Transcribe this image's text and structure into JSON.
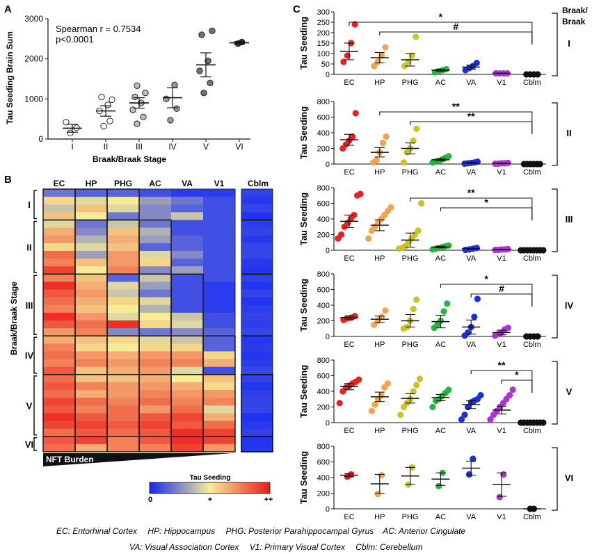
{
  "colors": {
    "EC": "#e8231f",
    "HP": "#f5a34a",
    "PHG": "#c7c42a",
    "AC": "#27b53b",
    "VA": "#1d2fd6",
    "V1": "#b12fd8",
    "Cblm": "#111111",
    "heat_low": "#1428f5",
    "heat_mid": "#f6ec98",
    "heat_high": "#ee1a1a"
  },
  "panel_a": {
    "letter": "A",
    "chart_data": {
      "type": "scatter",
      "categories": [
        "I",
        "II",
        "III",
        "IV",
        "V",
        "VI"
      ],
      "points": [
        [
          150,
          280,
          420
        ],
        [
          320,
          450,
          700,
          850,
          1050,
          980
        ],
        [
          380,
          550,
          730,
          900,
          1050,
          1150,
          1330
        ],
        [
          470,
          760,
          1000,
          1350
        ],
        [
          1150,
          1400,
          1700,
          1950,
          2600,
          2700
        ],
        [
          2380,
          2420
        ]
      ],
      "means": [
        270,
        700,
        900,
        1030,
        1850,
        2400
      ],
      "sem": [
        100,
        130,
        130,
        250,
        300,
        30
      ],
      "ylim": [
        0,
        3000
      ],
      "yticks": [
        "0",
        "1000",
        "2000",
        "3000"
      ],
      "xlabel": "Braak/Braak Stage",
      "ylabel": "Tau Seeding Brain Sum",
      "annotation": [
        "Spearman r = 0.7534",
        "p<0.0001"
      ]
    }
  },
  "panel_b": {
    "letter": "B",
    "columns": [
      "EC",
      "HP",
      "PHG",
      "AC",
      "VA",
      "V1"
    ],
    "cblm_label": "Cblm",
    "row_axis_label": "Braak/Braak Stage",
    "stage_labels": [
      "I",
      "II",
      "III",
      "IV",
      "V",
      "VI"
    ],
    "nft_label": "NFT Burden",
    "colorbar_title": "Tau Seeding",
    "colorbar_ticks": [
      "0",
      "+",
      "++"
    ],
    "chart_data": {
      "type": "heatmap",
      "scale": "0 = no seeding, 1 = maximum seeding",
      "rows_per_stage": [
        4,
        7,
        8,
        5,
        8,
        2
      ],
      "values": [
        [
          0.2,
          0.15,
          0.15,
          0.1,
          0.05,
          0.05,
          0.05
        ],
        [
          0.55,
          0.45,
          0.5,
          0.3,
          0.2,
          0.1,
          0.05
        ],
        [
          0.4,
          0.6,
          0.45,
          0.25,
          0.15,
          0.1,
          0.05
        ],
        [
          0.6,
          0.5,
          0.2,
          0.25,
          0.4,
          0.1,
          0.05
        ],
        [
          0.45,
          0.2,
          0.4,
          0.2,
          0.1,
          0.1,
          0.05
        ],
        [
          0.65,
          0.25,
          0.6,
          0.35,
          0.1,
          0.1,
          0.05
        ],
        [
          0.7,
          0.35,
          0.65,
          0.3,
          0.15,
          0.1,
          0.05
        ],
        [
          0.55,
          0.45,
          0.6,
          0.15,
          0.15,
          0.1,
          0.05
        ],
        [
          0.8,
          0.3,
          0.7,
          0.45,
          0.25,
          0.1,
          0.05
        ],
        [
          0.75,
          0.6,
          0.7,
          0.55,
          0.15,
          0.1,
          0.05
        ],
        [
          0.9,
          0.5,
          0.75,
          0.25,
          0.3,
          0.1,
          0.05
        ],
        [
          0.75,
          0.6,
          0.15,
          0.4,
          0.1,
          0.1,
          0.05
        ],
        [
          0.95,
          0.65,
          0.45,
          0.3,
          0.1,
          0.05,
          0.05
        ],
        [
          0.85,
          0.7,
          0.4,
          0.2,
          0.1,
          0.05,
          0.05
        ],
        [
          0.8,
          0.65,
          0.55,
          0.45,
          0.1,
          0.05,
          0.05
        ],
        [
          0.75,
          0.6,
          0.5,
          0.35,
          0.1,
          0.05,
          0.05
        ],
        [
          0.95,
          0.7,
          0.45,
          0.5,
          0.4,
          0.1,
          0.05
        ],
        [
          0.85,
          0.8,
          0.95,
          0.55,
          0.45,
          0.1,
          0.05
        ],
        [
          0.7,
          0.75,
          0.25,
          0.2,
          0.25,
          0.15,
          0.05
        ],
        [
          0.65,
          0.6,
          0.55,
          0.45,
          0.4,
          0.15,
          0.05
        ],
        [
          0.75,
          0.55,
          0.5,
          0.55,
          0.55,
          0.15,
          0.05
        ],
        [
          0.8,
          0.7,
          0.65,
          0.7,
          0.7,
          0.55,
          0.05
        ],
        [
          0.75,
          0.75,
          0.7,
          0.75,
          0.75,
          0.65,
          0.05
        ],
        [
          0.85,
          0.6,
          0.65,
          0.7,
          0.45,
          0.1,
          0.05
        ],
        [
          0.8,
          0.6,
          0.6,
          0.65,
          0.5,
          0.6,
          0.05
        ],
        [
          0.85,
          0.75,
          0.7,
          0.7,
          0.65,
          0.55,
          0.05
        ],
        [
          0.8,
          0.65,
          0.7,
          0.75,
          0.7,
          0.7,
          0.05
        ],
        [
          0.9,
          0.8,
          0.75,
          0.8,
          0.75,
          0.75,
          0.05
        ],
        [
          0.85,
          0.75,
          0.8,
          0.7,
          0.8,
          0.45,
          0.05
        ],
        [
          0.95,
          0.85,
          0.8,
          0.85,
          0.9,
          0.65,
          0.05
        ],
        [
          0.9,
          0.9,
          0.85,
          0.9,
          0.85,
          0.8,
          0.05
        ],
        [
          0.8,
          0.85,
          0.8,
          0.85,
          0.95,
          0.9,
          0.05
        ],
        [
          0.85,
          0.9,
          0.75,
          0.85,
          0.95,
          0.9,
          0.05
        ],
        [
          0.8,
          0.65,
          0.75,
          0.75,
          0.9,
          0.7,
          0.05
        ]
      ],
      "box_columns_per_stage": [
        [
          0,
          1,
          2
        ],
        [
          0,
          1,
          2,
          3
        ],
        [
          0,
          1,
          2,
          3,
          4
        ],
        [
          0,
          1,
          2,
          3,
          4,
          5
        ],
        [
          0,
          1,
          2,
          3,
          4,
          5,
          6
        ],
        [
          0,
          1,
          2,
          3,
          4,
          5,
          6
        ]
      ]
    }
  },
  "panel_c": {
    "letter": "C",
    "braak_header": [
      "Braak/",
      "Braak"
    ],
    "ylabel": "Tau Seeding",
    "regions": [
      "EC",
      "HP",
      "PHG",
      "AC",
      "VA",
      "V1",
      "Cblm"
    ],
    "chart_data": [
      {
        "stage": "I",
        "ylim": [
          0,
          300
        ],
        "yticks": [
          "0",
          "50",
          "100",
          "150",
          "200",
          "250",
          "300"
        ],
        "points": [
          [
            60,
            90,
            150,
            240
          ],
          [
            40,
            60,
            90,
            130
          ],
          [
            40,
            60,
            90,
            180
          ],
          [
            10,
            15,
            20,
            25
          ],
          [
            20,
            30,
            40,
            55
          ],
          [
            5,
            5,
            5,
            5
          ],
          [
            0,
            0,
            0,
            0
          ]
        ],
        "means": [
          110,
          80,
          70,
          20,
          35,
          5,
          0
        ],
        "sem": [
          40,
          25,
          30,
          5,
          10,
          1,
          0
        ],
        "brackets": [
          {
            "from": 0,
            "to": 6,
            "label": "*"
          },
          {
            "from": 1,
            "to": 6,
            "label": "#"
          }
        ]
      },
      {
        "stage": "II",
        "ylim": [
          0,
          800
        ],
        "yticks": [
          "0",
          "200",
          "400",
          "600",
          "800"
        ],
        "points": [
          [
            200,
            250,
            300,
            350,
            650
          ],
          [
            20,
            50,
            150,
            270,
            350
          ],
          [
            20,
            150,
            200,
            300,
            450
          ],
          [
            20,
            30,
            40,
            60,
            80,
            100
          ],
          [
            5,
            10,
            15,
            20,
            30
          ],
          [
            5,
            5,
            10,
            10,
            15
          ],
          [
            0,
            0,
            0,
            0,
            0,
            0
          ]
        ],
        "means": [
          310,
          150,
          200,
          55,
          15,
          8,
          0
        ],
        "sem": [
          70,
          60,
          70,
          15,
          5,
          2,
          0
        ],
        "brackets": [
          {
            "from": 1,
            "to": 6,
            "label": "**"
          },
          {
            "from": 2,
            "to": 6,
            "label": "**"
          }
        ]
      },
      {
        "stage": "III",
        "ylim": [
          0,
          800
        ],
        "yticks": [
          "0",
          "200",
          "400",
          "600",
          "800"
        ],
        "points": [
          [
            150,
            200,
            300,
            350,
            400,
            450,
            700,
            720
          ],
          [
            150,
            250,
            300,
            350,
            400,
            450,
            500,
            550
          ],
          [
            20,
            30,
            50,
            100,
            150,
            200,
            250,
            600
          ],
          [
            10,
            20,
            30,
            40,
            50,
            60
          ],
          [
            5,
            10,
            20,
            30
          ],
          [
            5,
            5,
            10,
            10,
            15
          ],
          [
            0,
            0,
            0,
            0,
            0,
            0,
            0,
            0
          ]
        ],
        "means": [
          370,
          320,
          130,
          40,
          20,
          10,
          5
        ],
        "sem": [
          80,
          70,
          90,
          10,
          5,
          2,
          1
        ],
        "brackets": [
          {
            "from": 2,
            "to": 6,
            "label": "**"
          },
          {
            "from": 3,
            "to": 6,
            "label": "*"
          }
        ]
      },
      {
        "stage": "IV",
        "ylim": [
          0,
          800
        ],
        "yticks": [
          "0",
          "200",
          "400",
          "600",
          "800"
        ],
        "points": [
          [
            210,
            230,
            240,
            260
          ],
          [
            150,
            200,
            250,
            330
          ],
          [
            100,
            120,
            200,
            350,
            470
          ],
          [
            110,
            150,
            200,
            320,
            420
          ],
          [
            10,
            50,
            120,
            250,
            480
          ],
          [
            10,
            30,
            50,
            90,
            110
          ],
          [
            0,
            0,
            0,
            0
          ]
        ],
        "means": [
          240,
          220,
          200,
          190,
          120,
          50,
          0
        ],
        "sem": [
          20,
          40,
          80,
          80,
          90,
          30,
          0
        ],
        "brackets": [
          {
            "from": 3,
            "to": 6,
            "label": "*"
          },
          {
            "from": 4,
            "to": 6,
            "label": "#"
          }
        ]
      },
      {
        "stage": "V",
        "ylim": [
          0,
          800
        ],
        "yticks": [
          "0",
          "200",
          "400",
          "600",
          "800"
        ],
        "points": [
          [
            250,
            400,
            450,
            470,
            500,
            520,
            550
          ],
          [
            150,
            230,
            300,
            350,
            450,
            500
          ],
          [
            100,
            200,
            250,
            300,
            400,
            480,
            560
          ],
          [
            200,
            280,
            300,
            340,
            380,
            420
          ],
          [
            40,
            100,
            200,
            260,
            280,
            300,
            350
          ],
          [
            40,
            100,
            150,
            200,
            250,
            300,
            350,
            420
          ],
          [
            0,
            0,
            0,
            0,
            0,
            0,
            0,
            0
          ]
        ],
        "means": [
          460,
          330,
          310,
          320,
          230,
          160,
          0
        ],
        "sem": [
          40,
          60,
          60,
          40,
          50,
          50,
          0
        ],
        "brackets": [
          {
            "from": 4,
            "to": 6,
            "label": "**"
          },
          {
            "from": 5,
            "to": 6,
            "label": "*"
          }
        ]
      },
      {
        "stage": "VI",
        "ylim": [
          0,
          800
        ],
        "yticks": [
          "0",
          "200",
          "400",
          "600",
          "800"
        ],
        "points": [
          [
            410,
            440
          ],
          [
            190,
            430
          ],
          [
            310,
            530
          ],
          [
            290,
            460
          ],
          [
            440,
            640
          ],
          [
            150,
            440
          ],
          [
            0,
            0
          ]
        ],
        "means": [
          430,
          320,
          420,
          380,
          520,
          310,
          0
        ],
        "sem": [
          20,
          120,
          110,
          80,
          90,
          150,
          0
        ],
        "brackets": []
      }
    ]
  },
  "legend": {
    "line1": [
      {
        "abbr": "EC",
        "name": "Entorhinal Cortex"
      },
      {
        "abbr": "HP",
        "name": "Hippocampus"
      },
      {
        "abbr": "PHG",
        "name": "Posterior Parahippocampal Gyrus"
      },
      {
        "abbr": "AC",
        "name": "Anterior Cingulate"
      }
    ],
    "line2": [
      {
        "abbr": "VA",
        "name": "Visual Association Cortex"
      },
      {
        "abbr": "V1",
        "name": "Primary Visual Cortex"
      },
      {
        "abbr": "Cblm",
        "name": "Cerebellum"
      }
    ]
  }
}
